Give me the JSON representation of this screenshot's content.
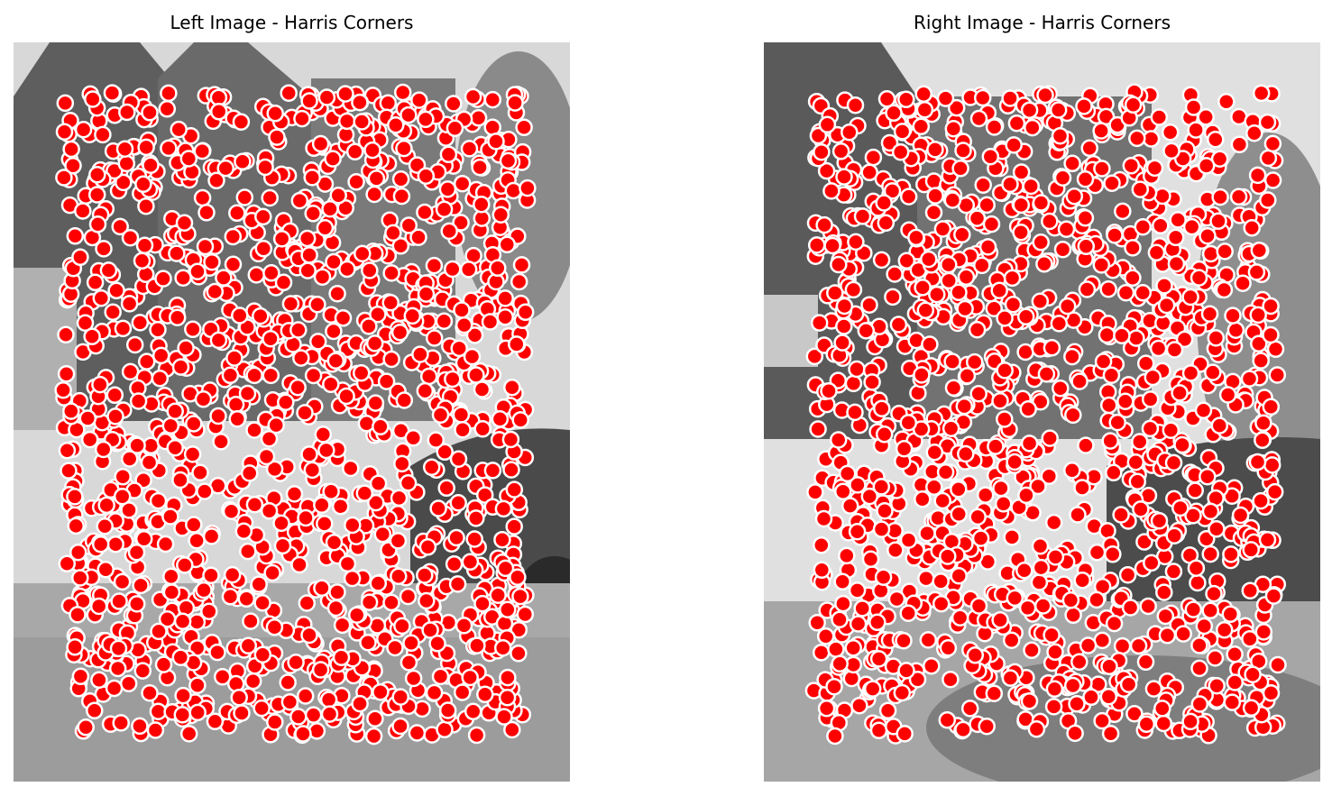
{
  "figure": {
    "panels": [
      {
        "title": "Left Image - Harris Corners",
        "image_description": "grayscale photograph of a house facade with a car at right and road in foreground",
        "marker_color": "#ff0000",
        "marker_edge": "#ffffff"
      },
      {
        "title": "Right Image - Harris Corners",
        "image_description": "grayscale photograph of the same house scene from a shifted viewpoint, with a tree at right",
        "marker_color": "#ff0000",
        "marker_edge": "#ffffff"
      }
    ]
  }
}
